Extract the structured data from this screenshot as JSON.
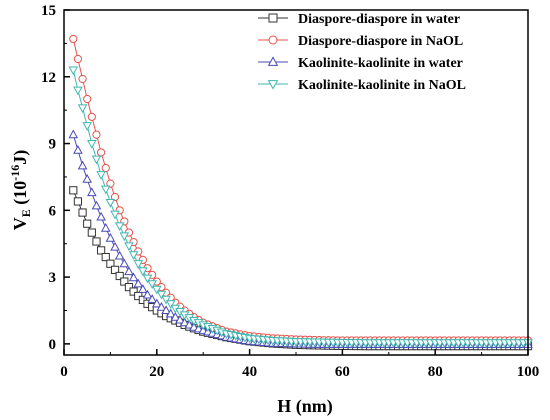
{
  "chart_data": {
    "type": "line",
    "xlabel": "H (nm)",
    "ylabel_parts": {
      "base": "V",
      "sub": "E",
      "open": " (10",
      "sup": "-16",
      "close": "J)"
    },
    "xlim": [
      0,
      100
    ],
    "ylim": [
      -0.5,
      15
    ],
    "xticks": [
      0,
      20,
      40,
      60,
      80,
      100
    ],
    "yticks": [
      0,
      3,
      6,
      9,
      12,
      15
    ],
    "legend_position": "top-right",
    "x": [
      2,
      3,
      4,
      5,
      6,
      7,
      8,
      9,
      10,
      12,
      14,
      16,
      18,
      20,
      22,
      24,
      26,
      28,
      30,
      35,
      40,
      45,
      50,
      55,
      60,
      65,
      70,
      75,
      80,
      85,
      90,
      95,
      100
    ],
    "series": [
      {
        "name": "Diaspore-diaspore  in water",
        "color": "#333333",
        "marker": "square",
        "values": [
          6.9,
          6.4,
          5.9,
          5.4,
          5.0,
          4.6,
          4.2,
          3.9,
          3.6,
          3.05,
          2.55,
          2.15,
          1.8,
          1.5,
          1.25,
          1.05,
          0.85,
          0.7,
          0.55,
          0.3,
          0.12,
          0.02,
          -0.04,
          -0.07,
          -0.09,
          -0.1,
          -0.1,
          -0.1,
          -0.1,
          -0.1,
          -0.1,
          -0.1,
          -0.1
        ]
      },
      {
        "name": "Diaspore-diaspore  in NaOL",
        "color": "#e8524a",
        "marker": "circle",
        "values": [
          13.7,
          12.8,
          11.9,
          11.0,
          10.2,
          9.4,
          8.6,
          7.9,
          7.2,
          6.0,
          5.0,
          4.15,
          3.4,
          2.8,
          2.3,
          1.85,
          1.5,
          1.2,
          0.95,
          0.55,
          0.35,
          0.25,
          0.2,
          0.17,
          0.15,
          0.15,
          0.15,
          0.15,
          0.15,
          0.15,
          0.15,
          0.15,
          0.15
        ]
      },
      {
        "name": "Kaolinite-kaolinite in water",
        "color": "#4a4ab8",
        "marker": "triangle-up",
        "values": [
          9.4,
          8.7,
          8.0,
          7.4,
          6.8,
          6.2,
          5.7,
          5.2,
          4.75,
          3.95,
          3.25,
          2.7,
          2.2,
          1.8,
          1.5,
          1.2,
          0.95,
          0.75,
          0.6,
          0.3,
          0.12,
          0.03,
          0.0,
          -0.02,
          -0.02,
          -0.02,
          -0.02,
          -0.02,
          -0.02,
          -0.02,
          -0.02,
          -0.02,
          -0.02
        ]
      },
      {
        "name": "Kaolinite-kaolinite in NaOL",
        "color": "#3fb8b0",
        "marker": "triangle-down",
        "values": [
          12.3,
          11.4,
          10.6,
          9.8,
          9.0,
          8.3,
          7.6,
          6.95,
          6.35,
          5.3,
          4.4,
          3.6,
          2.95,
          2.45,
          2.0,
          1.6,
          1.3,
          1.05,
          0.85,
          0.45,
          0.25,
          0.15,
          0.1,
          0.08,
          0.06,
          0.05,
          0.05,
          0.05,
          0.05,
          0.05,
          0.05,
          0.05,
          0.05
        ]
      }
    ]
  }
}
